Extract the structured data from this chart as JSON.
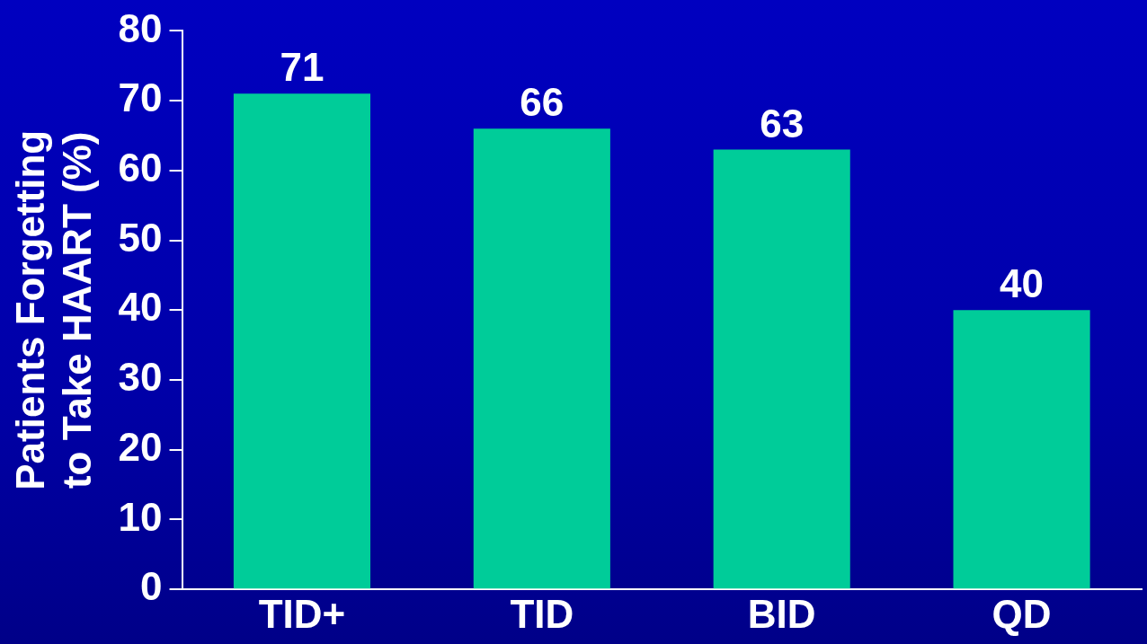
{
  "chart_data": {
    "type": "bar",
    "ylabel": "Patients Forgetting to Take HAART (%)",
    "categories": [
      "TID+",
      "TID",
      "BID",
      "QD"
    ],
    "values": [
      71,
      66,
      63,
      40
    ],
    "color": "#00cc99",
    "ylim": [
      0,
      80
    ],
    "yticks": [
      0,
      10,
      20,
      30,
      40,
      50,
      60,
      70,
      80
    ],
    "grid": false,
    "legend": false,
    "data_labels": true
  }
}
